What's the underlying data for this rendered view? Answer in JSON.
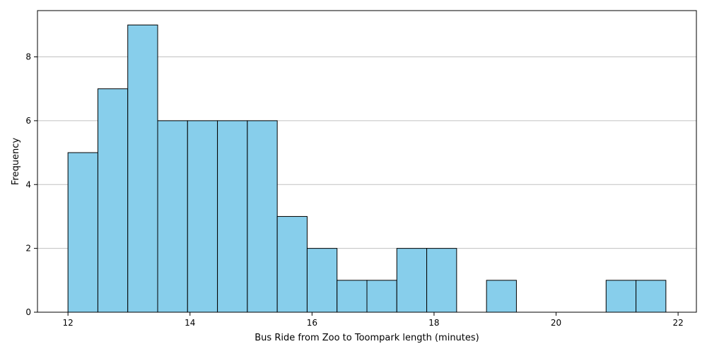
{
  "chart_data": {
    "type": "bar",
    "title": "",
    "xlabel": "Bus Ride from Zoo to Toompark length (minutes)",
    "ylabel": "Frequency",
    "xlim": [
      11.5,
      22.3
    ],
    "ylim": [
      0,
      9.45
    ],
    "x_ticks": [
      12,
      14,
      16,
      18,
      20,
      22
    ],
    "y_ticks": [
      0,
      2,
      4,
      6,
      8
    ],
    "grid": "y",
    "legend": "none",
    "bar_color": "#87CEEB",
    "edge_color": "#000000",
    "grid_color": "#c0c0c0",
    "bins": [
      {
        "start": 12.0,
        "end": 12.49,
        "count": 5
      },
      {
        "start": 12.49,
        "end": 12.98,
        "count": 7
      },
      {
        "start": 12.98,
        "end": 13.47,
        "count": 9
      },
      {
        "start": 13.47,
        "end": 13.96,
        "count": 6
      },
      {
        "start": 13.96,
        "end": 14.45,
        "count": 6
      },
      {
        "start": 14.45,
        "end": 14.94,
        "count": 6
      },
      {
        "start": 14.94,
        "end": 15.43,
        "count": 6
      },
      {
        "start": 15.43,
        "end": 15.92,
        "count": 3
      },
      {
        "start": 15.92,
        "end": 16.41,
        "count": 2
      },
      {
        "start": 16.41,
        "end": 16.9,
        "count": 1
      },
      {
        "start": 16.9,
        "end": 17.39,
        "count": 1
      },
      {
        "start": 17.39,
        "end": 17.88,
        "count": 2
      },
      {
        "start": 17.88,
        "end": 18.37,
        "count": 2
      },
      {
        "start": 18.37,
        "end": 18.86,
        "count": 0
      },
      {
        "start": 18.86,
        "end": 19.35,
        "count": 1
      },
      {
        "start": 19.35,
        "end": 19.84,
        "count": 0
      },
      {
        "start": 19.84,
        "end": 20.33,
        "count": 0
      },
      {
        "start": 20.33,
        "end": 20.82,
        "count": 0
      },
      {
        "start": 20.82,
        "end": 21.31,
        "count": 1
      },
      {
        "start": 21.31,
        "end": 21.8,
        "count": 1
      }
    ]
  }
}
